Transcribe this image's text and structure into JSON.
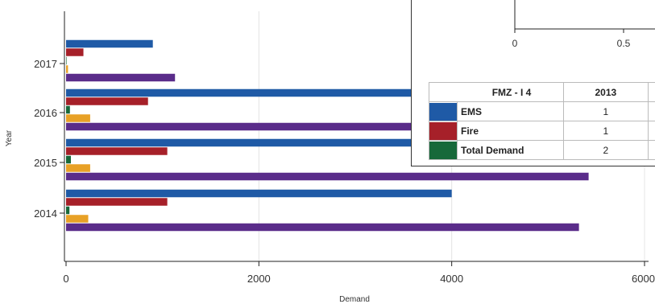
{
  "chart_data": {
    "type": "bar",
    "orientation": "horizontal",
    "categories": [
      "2017",
      "2016",
      "2015",
      "2014"
    ],
    "series": [
      {
        "color": "#1f5aa6",
        "values": [
          900,
          3600,
          3600,
          4000
        ]
      },
      {
        "color": "#a62029",
        "values": [
          180,
          850,
          1050,
          1050
        ]
      },
      {
        "color": "#17693a",
        "values": [
          5,
          40,
          50,
          35
        ]
      },
      {
        "color": "#e8a126",
        "values": [
          20,
          250,
          250,
          230
        ]
      },
      {
        "color": "#5a2c8a",
        "values": [
          1130,
          3600,
          5420,
          5320
        ]
      }
    ],
    "xlabel": "Demand",
    "ylabel": "Year",
    "xlim": [
      0,
      6000
    ],
    "xticks": [
      "0",
      "2000",
      "4000",
      "6000"
    ],
    "grid": true
  },
  "inset": {
    "axis_ticks": [
      "0",
      "0.5"
    ],
    "table": {
      "header": [
        "FMZ - I 4",
        "2013"
      ],
      "rows": [
        {
          "label": "EMS",
          "color": "#1f5aa6",
          "value": "1"
        },
        {
          "label": "Fire",
          "color": "#a62029",
          "value": "1"
        },
        {
          "label": "Total Demand",
          "color": "#17693a",
          "value": "2"
        }
      ]
    }
  }
}
